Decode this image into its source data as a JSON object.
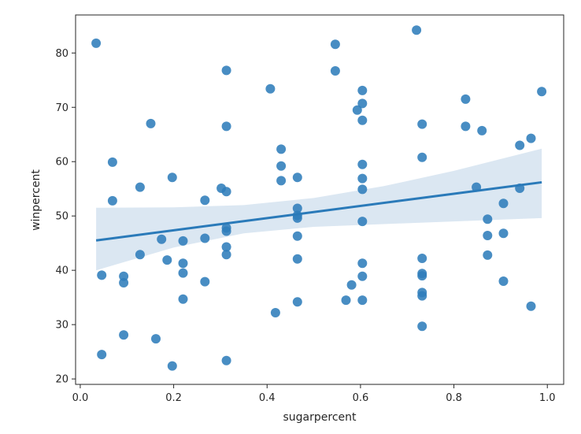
{
  "chart_data": {
    "type": "scatter",
    "title": "",
    "xlabel": "sugarpercent",
    "ylabel": "winpercent",
    "xlim": [
      -0.01,
      1.035
    ],
    "ylim": [
      19.0,
      87.0
    ],
    "xticks": [
      0.0,
      0.2,
      0.4,
      0.6,
      0.8,
      1.0
    ],
    "xtick_labels": [
      "0.0",
      "0.2",
      "0.4",
      "0.6",
      "0.8",
      "1.0"
    ],
    "yticks": [
      20,
      30,
      40,
      50,
      60,
      70,
      80
    ],
    "ytick_labels": [
      "20",
      "30",
      "40",
      "50",
      "60",
      "70",
      "80"
    ],
    "grid": false,
    "legend": "none",
    "colors": {
      "points": "#2f7dbb",
      "regression_line": "#2a7ab9",
      "confidence_band": "#dbe7f2",
      "axis": "#262626"
    },
    "points": [
      {
        "x": 0.034,
        "y": 81.8
      },
      {
        "x": 0.046,
        "y": 39.1
      },
      {
        "x": 0.046,
        "y": 24.5
      },
      {
        "x": 0.069,
        "y": 59.9
      },
      {
        "x": 0.069,
        "y": 52.8
      },
      {
        "x": 0.093,
        "y": 38.9
      },
      {
        "x": 0.093,
        "y": 37.7
      },
      {
        "x": 0.093,
        "y": 28.1
      },
      {
        "x": 0.128,
        "y": 55.3
      },
      {
        "x": 0.128,
        "y": 42.9
      },
      {
        "x": 0.151,
        "y": 67.0
      },
      {
        "x": 0.162,
        "y": 27.4
      },
      {
        "x": 0.174,
        "y": 45.7
      },
      {
        "x": 0.186,
        "y": 41.9
      },
      {
        "x": 0.197,
        "y": 57.1
      },
      {
        "x": 0.197,
        "y": 22.4
      },
      {
        "x": 0.22,
        "y": 45.4
      },
      {
        "x": 0.22,
        "y": 41.3
      },
      {
        "x": 0.22,
        "y": 39.5
      },
      {
        "x": 0.22,
        "y": 34.7
      },
      {
        "x": 0.267,
        "y": 52.9
      },
      {
        "x": 0.267,
        "y": 45.9
      },
      {
        "x": 0.267,
        "y": 37.9
      },
      {
        "x": 0.302,
        "y": 55.1
      },
      {
        "x": 0.313,
        "y": 76.8
      },
      {
        "x": 0.313,
        "y": 66.5
      },
      {
        "x": 0.313,
        "y": 54.5
      },
      {
        "x": 0.313,
        "y": 47.8
      },
      {
        "x": 0.313,
        "y": 47.2
      },
      {
        "x": 0.313,
        "y": 44.3
      },
      {
        "x": 0.313,
        "y": 42.9
      },
      {
        "x": 0.313,
        "y": 23.4
      },
      {
        "x": 0.407,
        "y": 73.4
      },
      {
        "x": 0.418,
        "y": 32.2
      },
      {
        "x": 0.43,
        "y": 62.3
      },
      {
        "x": 0.43,
        "y": 59.2
      },
      {
        "x": 0.43,
        "y": 56.5
      },
      {
        "x": 0.465,
        "y": 57.1
      },
      {
        "x": 0.465,
        "y": 51.4
      },
      {
        "x": 0.465,
        "y": 50.1
      },
      {
        "x": 0.465,
        "y": 49.6
      },
      {
        "x": 0.465,
        "y": 46.3
      },
      {
        "x": 0.465,
        "y": 42.1
      },
      {
        "x": 0.465,
        "y": 34.2
      },
      {
        "x": 0.546,
        "y": 81.6
      },
      {
        "x": 0.546,
        "y": 76.7
      },
      {
        "x": 0.569,
        "y": 34.5
      },
      {
        "x": 0.581,
        "y": 37.3
      },
      {
        "x": 0.593,
        "y": 69.5
      },
      {
        "x": 0.604,
        "y": 73.1
      },
      {
        "x": 0.604,
        "y": 70.7
      },
      {
        "x": 0.604,
        "y": 67.6
      },
      {
        "x": 0.604,
        "y": 59.5
      },
      {
        "x": 0.604,
        "y": 56.9
      },
      {
        "x": 0.604,
        "y": 54.9
      },
      {
        "x": 0.604,
        "y": 49.0
      },
      {
        "x": 0.604,
        "y": 41.3
      },
      {
        "x": 0.604,
        "y": 38.9
      },
      {
        "x": 0.604,
        "y": 34.5
      },
      {
        "x": 0.72,
        "y": 84.2
      },
      {
        "x": 0.732,
        "y": 66.9
      },
      {
        "x": 0.732,
        "y": 60.8
      },
      {
        "x": 0.732,
        "y": 42.2
      },
      {
        "x": 0.732,
        "y": 39.4
      },
      {
        "x": 0.732,
        "y": 39.0
      },
      {
        "x": 0.732,
        "y": 35.9
      },
      {
        "x": 0.732,
        "y": 35.3
      },
      {
        "x": 0.732,
        "y": 29.7
      },
      {
        "x": 0.825,
        "y": 71.5
      },
      {
        "x": 0.825,
        "y": 66.5
      },
      {
        "x": 0.848,
        "y": 55.3
      },
      {
        "x": 0.86,
        "y": 65.7
      },
      {
        "x": 0.872,
        "y": 49.4
      },
      {
        "x": 0.872,
        "y": 46.4
      },
      {
        "x": 0.872,
        "y": 42.8
      },
      {
        "x": 0.906,
        "y": 52.3
      },
      {
        "x": 0.906,
        "y": 46.8
      },
      {
        "x": 0.906,
        "y": 38.0
      },
      {
        "x": 0.941,
        "y": 63.0
      },
      {
        "x": 0.941,
        "y": 55.1
      },
      {
        "x": 0.965,
        "y": 64.3
      },
      {
        "x": 0.965,
        "y": 33.4
      },
      {
        "x": 0.988,
        "y": 72.9
      }
    ],
    "regression": {
      "x_range": [
        0.034,
        0.988
      ],
      "y_range": [
        45.5,
        56.2
      ]
    },
    "confidence_band": [
      {
        "x": 0.034,
        "lower": 40.0,
        "upper": 51.5
      },
      {
        "x": 0.2,
        "lower": 44.2,
        "upper": 51.6
      },
      {
        "x": 0.35,
        "lower": 46.8,
        "upper": 52.0
      },
      {
        "x": 0.5,
        "lower": 48.0,
        "upper": 53.3
      },
      {
        "x": 0.65,
        "lower": 48.5,
        "upper": 55.5
      },
      {
        "x": 0.8,
        "lower": 49.0,
        "upper": 58.3
      },
      {
        "x": 0.988,
        "lower": 49.6,
        "upper": 62.4
      }
    ]
  }
}
